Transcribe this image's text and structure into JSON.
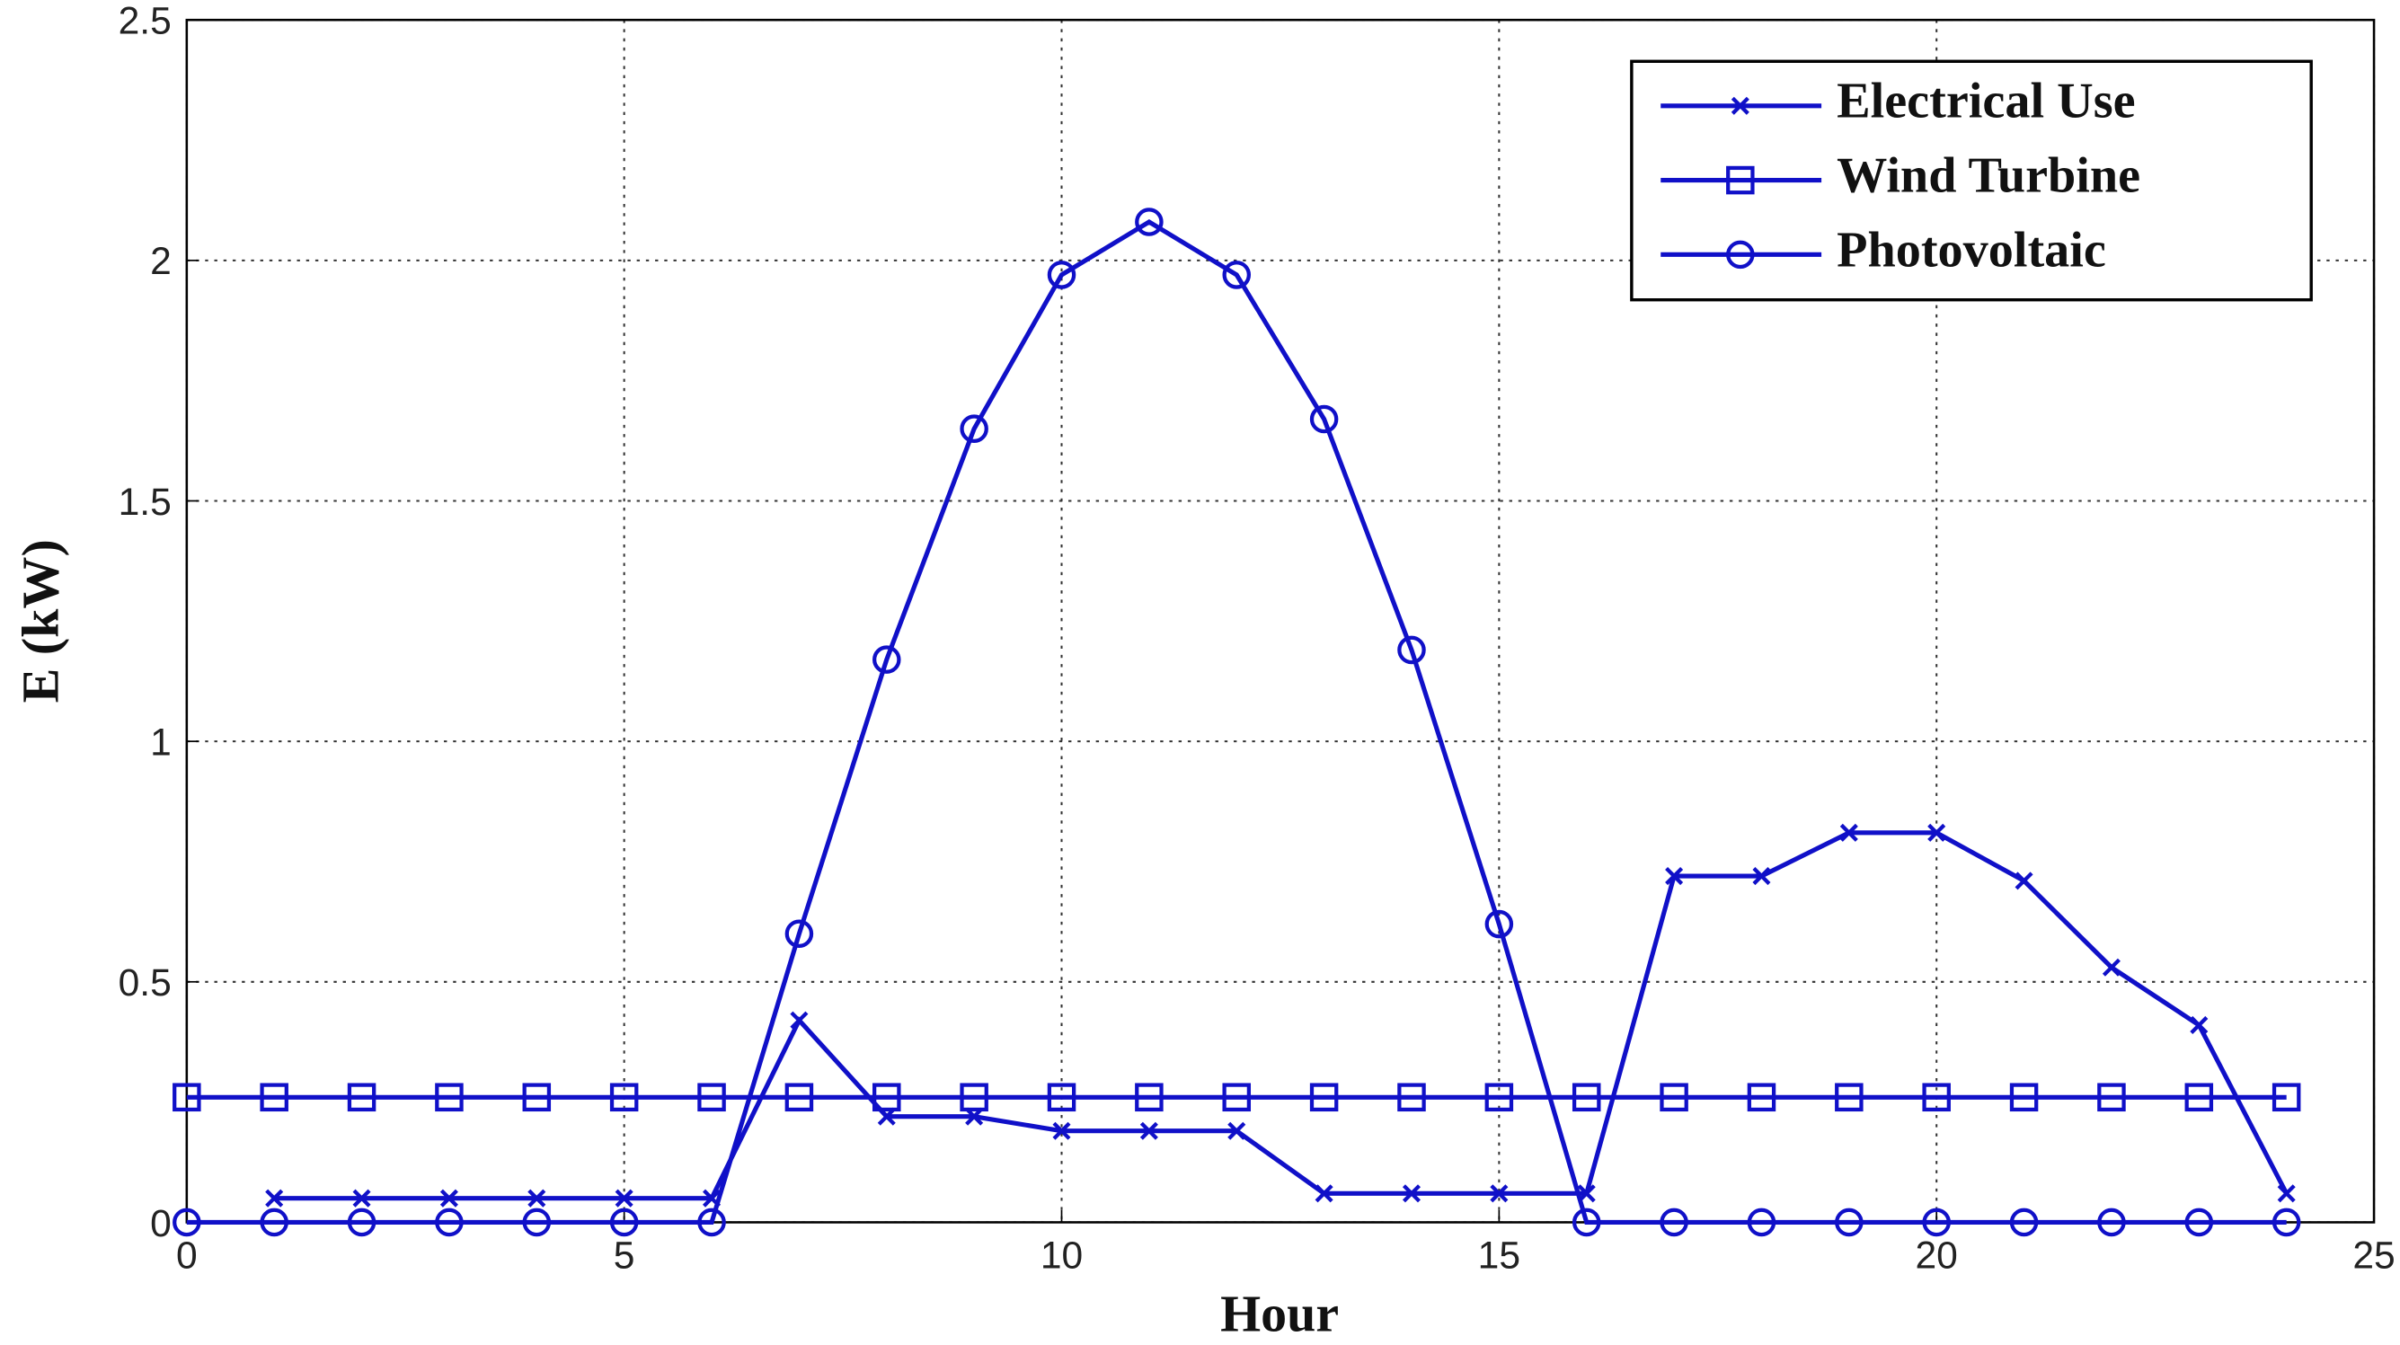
{
  "chart_data": {
    "type": "line",
    "x_label": "Hour",
    "y_label": "E (kW)",
    "x": [
      0,
      1,
      2,
      3,
      4,
      5,
      6,
      7,
      8,
      9,
      10,
      11,
      12,
      13,
      14,
      15,
      16,
      17,
      18,
      19,
      20,
      21,
      22,
      23,
      24
    ],
    "series": [
      {
        "name": "Electrical Use",
        "color": "#1010c8",
        "marker": "x",
        "values": [
          null,
          0.05,
          0.05,
          0.05,
          0.05,
          0.05,
          0.05,
          0.42,
          0.22,
          0.22,
          0.19,
          0.19,
          0.19,
          0.06,
          0.06,
          0.06,
          0.06,
          0.72,
          0.72,
          0.81,
          0.81,
          0.71,
          0.53,
          0.41,
          0.06
        ]
      },
      {
        "name": "Wind Turbine",
        "color": "#1010c8",
        "marker": "square",
        "values": [
          0.26,
          0.26,
          0.26,
          0.26,
          0.26,
          0.26,
          0.26,
          0.26,
          0.26,
          0.26,
          0.26,
          0.26,
          0.26,
          0.26,
          0.26,
          0.26,
          0.26,
          0.26,
          0.26,
          0.26,
          0.26,
          0.26,
          0.26,
          0.26,
          0.26
        ]
      },
      {
        "name": "Photovoltaic",
        "color": "#1010c8",
        "marker": "circle",
        "values": [
          0,
          0,
          0,
          0,
          0,
          0,
          0,
          0.6,
          1.17,
          1.65,
          1.97,
          2.08,
          1.97,
          1.67,
          1.19,
          0.62,
          0,
          0,
          0,
          0,
          0,
          0,
          0,
          0,
          0
        ]
      }
    ],
    "xlim": [
      0,
      25
    ],
    "xticks": [
      0,
      5,
      10,
      15,
      20,
      25
    ],
    "ylim": [
      0,
      2.5
    ],
    "yticks": [
      0,
      0.5,
      1,
      1.5,
      2,
      2.5
    ],
    "grid": true,
    "legend": "upper right"
  }
}
